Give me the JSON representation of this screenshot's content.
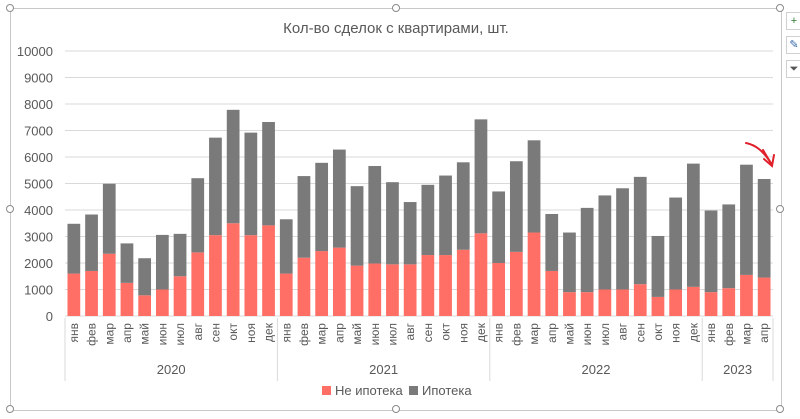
{
  "chart_data": {
    "type": "bar",
    "stacked": true,
    "title": "Кол-во сделок с квартирами, шт.",
    "xlabel": "",
    "ylabel": "",
    "ylim": [
      0,
      10000
    ],
    "yticks": [
      0,
      1000,
      2000,
      3000,
      4000,
      5000,
      6000,
      7000,
      8000,
      9000,
      10000
    ],
    "grid": true,
    "legend_position": "bottom",
    "categories": [
      "янв",
      "фев",
      "мар",
      "апр",
      "май",
      "июн",
      "июл",
      "авг",
      "сен",
      "окт",
      "ноя",
      "дек",
      "янв",
      "фев",
      "мар",
      "апр",
      "май",
      "июн",
      "июл",
      "авг",
      "сен",
      "окт",
      "ноя",
      "дек",
      "янв",
      "фев",
      "мар",
      "апр",
      "май",
      "июн",
      "июл",
      "авг",
      "сен",
      "окт",
      "ноя",
      "дек",
      "янв",
      "фев",
      "мар",
      "апр"
    ],
    "year_groups": [
      {
        "label": "2020",
        "count": 12
      },
      {
        "label": "2021",
        "count": 12
      },
      {
        "label": "2022",
        "count": 12
      },
      {
        "label": "2023",
        "count": 4
      }
    ],
    "series": [
      {
        "name": "Не ипотека",
        "color": "#ff6f66",
        "values": [
          1600,
          1700,
          2350,
          1250,
          780,
          1000,
          1500,
          2400,
          3050,
          3500,
          3050,
          3420,
          1600,
          2200,
          2450,
          2580,
          1900,
          1980,
          1950,
          1950,
          2300,
          2300,
          2500,
          3120,
          2000,
          2420,
          3150,
          1700,
          900,
          900,
          1000,
          1000,
          1200,
          720,
          1000,
          1100,
          900,
          1050,
          1550,
          1450
        ]
      },
      {
        "name": "Ипотека",
        "color": "#7a7a7a",
        "values": [
          1880,
          2130,
          2640,
          1490,
          1400,
          2060,
          1600,
          2800,
          3680,
          4280,
          3870,
          3900,
          2050,
          3080,
          3330,
          3700,
          3000,
          3680,
          3100,
          2350,
          2650,
          3000,
          3300,
          4300,
          2700,
          3420,
          3480,
          2150,
          2250,
          3180,
          3550,
          3820,
          4050,
          2300,
          3470,
          4650,
          3080,
          3160,
          4160,
          3720
        ]
      }
    ]
  },
  "tools": {
    "plus": "+",
    "brush": "✎",
    "filter": "⏷"
  },
  "annotation_color": "#e0202a"
}
